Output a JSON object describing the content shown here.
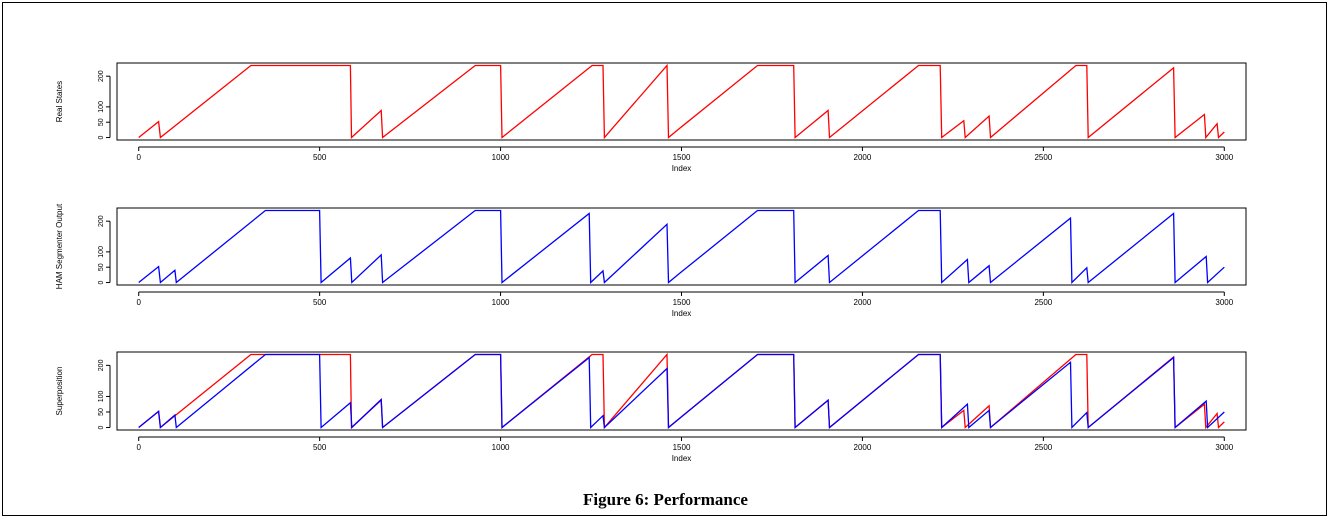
{
  "caption": "Figure 6: Performance",
  "colors": {
    "real": "#ff0000",
    "ham": "#0000ff",
    "axis": "#000000"
  },
  "chart_data": [
    {
      "type": "line",
      "title": "",
      "xlabel": "Index",
      "ylabel": "Real States",
      "xlim": [
        -60,
        3060
      ],
      "ylim": [
        -8,
        243
      ],
      "xticks": [
        0,
        500,
        1000,
        1500,
        2000,
        2500,
        3000
      ],
      "yticks": [
        0,
        50,
        100,
        200
      ],
      "series": [
        {
          "color": "#ff0000",
          "x": [
            0,
            55,
            55,
            60,
            60,
            60,
            310,
            585,
            585,
            588,
            588,
            588,
            670,
            670,
            674,
            674,
            674,
            930,
            1000,
            1000,
            1004,
            1004,
            1004,
            1253,
            1283,
            1283,
            1287,
            1287,
            1287,
            1460,
            1460,
            1464,
            1464,
            1464,
            1495,
            1710,
            1810,
            1810,
            1814,
            1814,
            1814,
            1905,
            1905,
            1909,
            1909,
            1909,
            2155,
            2215,
            2215,
            2219,
            2219,
            2219,
            2280,
            2280,
            2284,
            2284,
            2284,
            2350,
            2350,
            2354,
            2354,
            2354,
            2590,
            2620,
            2620,
            2624,
            2624,
            2624,
            2860,
            2860,
            2864,
            2864,
            2864,
            2945,
            2945,
            2949,
            2949,
            2949,
            2980,
            2980,
            2984,
            2984,
            2984,
            3000
          ],
          "y": [
            0,
            52,
            52,
            0,
            0,
            0,
            235,
            235,
            235,
            0,
            0,
            0,
            88,
            88,
            0,
            0,
            0,
            235,
            235,
            235,
            0,
            0,
            0,
            235,
            235,
            235,
            0,
            0,
            0,
            235,
            235,
            0,
            0,
            0,
            30,
            235,
            235,
            235,
            0,
            0,
            0,
            88,
            88,
            0,
            0,
            0,
            235,
            235,
            235,
            0,
            0,
            0,
            55,
            55,
            0,
            0,
            0,
            70,
            70,
            0,
            0,
            0,
            235,
            235,
            235,
            0,
            0,
            0,
            227,
            227,
            0,
            0,
            0,
            75,
            75,
            0,
            0,
            0,
            45,
            45,
            0,
            0,
            0,
            18
          ]
        }
      ]
    },
    {
      "type": "line",
      "title": "",
      "xlabel": "Index",
      "ylabel": "HAM Segmenter Output",
      "xlim": [
        -60,
        3060
      ],
      "ylim": [
        -8,
        243
      ],
      "xticks": [
        0,
        500,
        1000,
        1500,
        2000,
        2500,
        3000
      ],
      "yticks": [
        0,
        50,
        100,
        200
      ],
      "series": [
        {
          "color": "#0000ff",
          "x": [
            0,
            55,
            55,
            60,
            60,
            60,
            100,
            100,
            104,
            104,
            104,
            350,
            500,
            500,
            504,
            504,
            504,
            585,
            585,
            589,
            589,
            589,
            670,
            670,
            674,
            674,
            674,
            930,
            1000,
            1000,
            1004,
            1004,
            1004,
            1245,
            1245,
            1249,
            1249,
            1249,
            1283,
            1283,
            1287,
            1287,
            1287,
            1460,
            1460,
            1464,
            1464,
            1464,
            1495,
            1710,
            1810,
            1810,
            1814,
            1814,
            1814,
            1905,
            1905,
            1909,
            1909,
            1909,
            2155,
            2215,
            2215,
            2219,
            2219,
            2219,
            2290,
            2290,
            2294,
            2294,
            2294,
            2350,
            2350,
            2354,
            2354,
            2354,
            2575,
            2575,
            2579,
            2579,
            2579,
            2620,
            2620,
            2624,
            2624,
            2624,
            2860,
            2860,
            2864,
            2864,
            2864,
            2950,
            2950,
            2954,
            2954,
            2954,
            3000
          ],
          "y": [
            0,
            52,
            52,
            0,
            0,
            0,
            40,
            40,
            0,
            0,
            0,
            235,
            235,
            235,
            0,
            0,
            0,
            80,
            80,
            0,
            0,
            0,
            90,
            90,
            0,
            0,
            0,
            235,
            235,
            235,
            0,
            0,
            0,
            225,
            225,
            0,
            0,
            0,
            38,
            38,
            0,
            0,
            0,
            190,
            190,
            0,
            0,
            0,
            30,
            235,
            235,
            235,
            0,
            0,
            0,
            88,
            88,
            0,
            0,
            0,
            235,
            235,
            235,
            0,
            0,
            0,
            75,
            75,
            0,
            0,
            0,
            55,
            55,
            0,
            0,
            0,
            210,
            210,
            0,
            0,
            0,
            48,
            48,
            0,
            0,
            0,
            225,
            225,
            0,
            0,
            0,
            85,
            85,
            0,
            0,
            0,
            50
          ]
        }
      ]
    },
    {
      "type": "line",
      "title": "",
      "xlabel": "Index",
      "ylabel": "Superposition",
      "xlim": [
        -60,
        3060
      ],
      "ylim": [
        -8,
        243
      ],
      "xticks": [
        0,
        500,
        1000,
        1500,
        2000,
        2500,
        3000
      ],
      "yticks": [
        0,
        50,
        100,
        200
      ],
      "series": [
        {
          "color": "#ff0000",
          "x": [
            0,
            55,
            55,
            60,
            60,
            60,
            310,
            585,
            585,
            588,
            588,
            588,
            670,
            670,
            674,
            674,
            674,
            930,
            1000,
            1000,
            1004,
            1004,
            1004,
            1253,
            1283,
            1283,
            1287,
            1287,
            1287,
            1460,
            1460,
            1464,
            1464,
            1464,
            1495,
            1710,
            1810,
            1810,
            1814,
            1814,
            1814,
            1905,
            1905,
            1909,
            1909,
            1909,
            2155,
            2215,
            2215,
            2219,
            2219,
            2219,
            2280,
            2280,
            2284,
            2284,
            2284,
            2350,
            2350,
            2354,
            2354,
            2354,
            2590,
            2620,
            2620,
            2624,
            2624,
            2624,
            2860,
            2860,
            2864,
            2864,
            2864,
            2945,
            2945,
            2949,
            2949,
            2949,
            2980,
            2980,
            2984,
            2984,
            2984,
            3000
          ],
          "y": [
            0,
            52,
            52,
            0,
            0,
            0,
            235,
            235,
            235,
            0,
            0,
            0,
            88,
            88,
            0,
            0,
            0,
            235,
            235,
            235,
            0,
            0,
            0,
            235,
            235,
            235,
            0,
            0,
            0,
            235,
            235,
            0,
            0,
            0,
            30,
            235,
            235,
            235,
            0,
            0,
            0,
            88,
            88,
            0,
            0,
            0,
            235,
            235,
            235,
            0,
            0,
            0,
            55,
            55,
            0,
            0,
            0,
            70,
            70,
            0,
            0,
            0,
            235,
            235,
            235,
            0,
            0,
            0,
            227,
            227,
            0,
            0,
            0,
            75,
            75,
            0,
            0,
            0,
            45,
            45,
            0,
            0,
            0,
            18
          ]
        },
        {
          "color": "#0000ff",
          "x": [
            0,
            55,
            55,
            60,
            60,
            60,
            100,
            100,
            104,
            104,
            104,
            350,
            500,
            500,
            504,
            504,
            504,
            585,
            585,
            589,
            589,
            589,
            670,
            670,
            674,
            674,
            674,
            930,
            1000,
            1000,
            1004,
            1004,
            1004,
            1245,
            1245,
            1249,
            1249,
            1249,
            1283,
            1283,
            1287,
            1287,
            1287,
            1460,
            1460,
            1464,
            1464,
            1464,
            1495,
            1710,
            1810,
            1810,
            1814,
            1814,
            1814,
            1905,
            1905,
            1909,
            1909,
            1909,
            2155,
            2215,
            2215,
            2219,
            2219,
            2219,
            2290,
            2290,
            2294,
            2294,
            2294,
            2350,
            2350,
            2354,
            2354,
            2354,
            2575,
            2575,
            2579,
            2579,
            2579,
            2620,
            2620,
            2624,
            2624,
            2624,
            2860,
            2860,
            2864,
            2864,
            2864,
            2950,
            2950,
            2954,
            2954,
            2954,
            3000
          ],
          "y": [
            0,
            52,
            52,
            0,
            0,
            0,
            40,
            40,
            0,
            0,
            0,
            235,
            235,
            235,
            0,
            0,
            0,
            80,
            80,
            0,
            0,
            0,
            90,
            90,
            0,
            0,
            0,
            235,
            235,
            235,
            0,
            0,
            0,
            225,
            225,
            0,
            0,
            0,
            38,
            38,
            0,
            0,
            0,
            190,
            190,
            0,
            0,
            0,
            30,
            235,
            235,
            235,
            0,
            0,
            0,
            88,
            88,
            0,
            0,
            0,
            235,
            235,
            235,
            0,
            0,
            0,
            75,
            75,
            0,
            0,
            0,
            55,
            55,
            0,
            0,
            0,
            210,
            210,
            0,
            0,
            0,
            48,
            48,
            0,
            0,
            0,
            225,
            225,
            0,
            0,
            0,
            85,
            85,
            0,
            0,
            0,
            50
          ]
        }
      ]
    }
  ]
}
